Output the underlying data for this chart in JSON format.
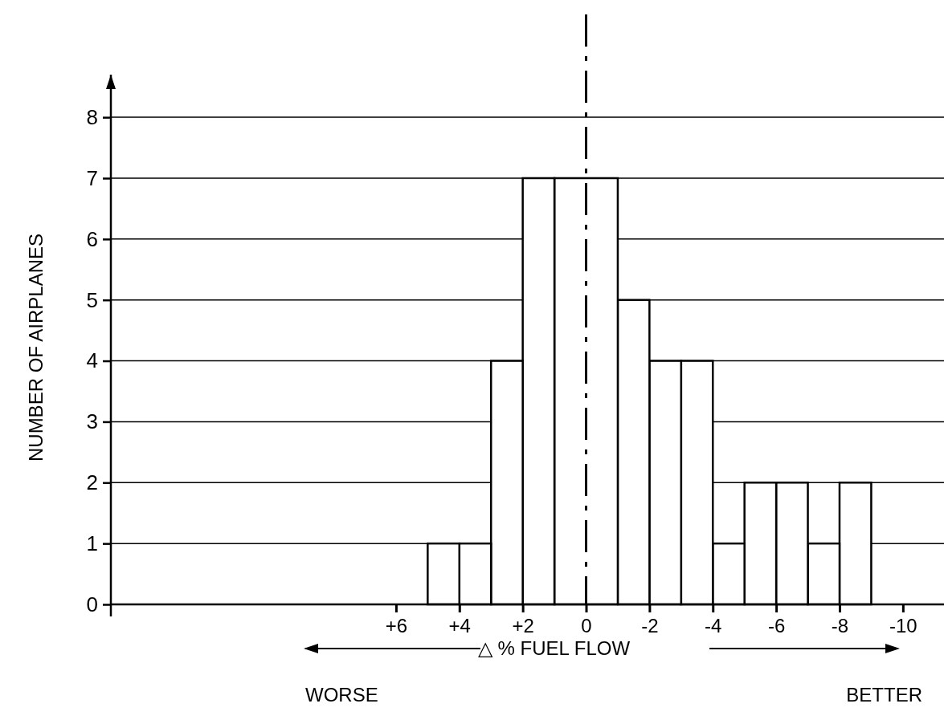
{
  "chart_data": {
    "type": "histogram",
    "xlabel": "△ % FUEL FLOW",
    "ylabel": "NUMBER OF AIRPLANES",
    "bins": [
      -9,
      -8,
      -7,
      -6,
      -5,
      -4,
      -3,
      -2,
      -1,
      1,
      2,
      3,
      4,
      5
    ],
    "values": [
      2,
      1,
      2,
      2,
      1,
      4,
      4,
      5,
      7,
      7,
      4,
      1,
      1
    ],
    "color": "#ffffff",
    "xlim": [
      15,
      -11.5
    ],
    "xticks": [
      {
        "value": 6,
        "label": "+6"
      },
      {
        "value": 4,
        "label": "+4"
      },
      {
        "value": 2,
        "label": "+2"
      },
      {
        "value": 0,
        "label": "0"
      },
      {
        "value": -2,
        "label": "-2"
      },
      {
        "value": -4,
        "label": "-4"
      },
      {
        "value": -6,
        "label": "-6"
      },
      {
        "value": -8,
        "label": "-8"
      },
      {
        "value": -10,
        "label": "-10"
      }
    ],
    "ylim": [
      0,
      8.7
    ],
    "yticks": [
      {
        "value": 0,
        "label": "0"
      },
      {
        "value": 1,
        "label": "1"
      },
      {
        "value": 2,
        "label": "2"
      },
      {
        "value": 3,
        "label": "3"
      },
      {
        "value": 4,
        "label": "4"
      },
      {
        "value": 5,
        "label": "5"
      },
      {
        "value": 6,
        "label": "6"
      },
      {
        "value": 7,
        "label": "7"
      },
      {
        "value": 8,
        "label": "8"
      }
    ],
    "grid": "y",
    "ref_lines": [
      {
        "axis": "x",
        "value": 0,
        "line_style": "dashed"
      }
    ],
    "annotations": [
      "WORSE",
      "BETTER"
    ]
  }
}
